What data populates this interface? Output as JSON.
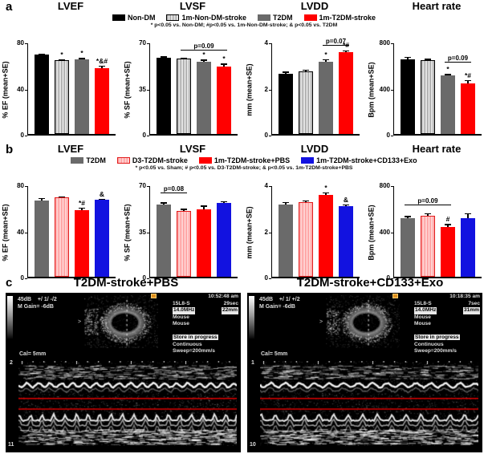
{
  "figure": {
    "panels": {
      "a": {
        "label": "a",
        "legend": [
          {
            "label": "Non-DM",
            "style": "black"
          },
          {
            "label": "1m-Non-DM-stroke",
            "style": "grayStriped"
          },
          {
            "label": "T2DM",
            "style": "gray"
          },
          {
            "label": "1m-T2DM-stroke",
            "style": "red"
          }
        ],
        "bar_styles": [
          "black",
          "grayStriped",
          "gray",
          "red"
        ],
        "note": "* p<0.05 vs. Non-DM;  #p<0.05 vs. 1m-Non-DM-stroke;  & p<0.05 vs. T2DM"
      },
      "b": {
        "label": "b",
        "legend": [
          {
            "label": "T2DM",
            "style": "gray"
          },
          {
            "label": "D3-T2DM-stroke",
            "style": "pinkStriped"
          },
          {
            "label": "1m-T2DM-stroke+PBS",
            "style": "red"
          },
          {
            "label": "1m-T2DM-stroke+CD133+Exo",
            "style": "blue"
          }
        ],
        "bar_styles": [
          "gray",
          "pinkStriped",
          "red",
          "blue"
        ],
        "note": "* p<0.05 vs. Sham; # p<0.05 vs. D3-T2DM-stroke; & p<0.05 vs. 1m-T2DM-stroke+PBS"
      },
      "c": {
        "label": "c"
      }
    },
    "colors": {
      "black": "#000000",
      "gray": "#6a6a6a",
      "red": "#ff0000",
      "blue": "#1212e0",
      "pink": "#ffb4b4",
      "mmode_marker_line": "#dd0000"
    }
  },
  "chart_data": [
    {
      "panel": "a",
      "type": "bar",
      "title": "LVEF",
      "ylabel": "% EF (mean+SE)",
      "ylim": [
        0,
        80
      ],
      "yticks": [
        0,
        40,
        80
      ],
      "categories": [
        "Non-DM",
        "1m-Non-DM-stroke",
        "T2DM",
        "1m-T2DM-stroke"
      ],
      "values": [
        70,
        65,
        66,
        58
      ],
      "errors": [
        1,
        1,
        1,
        2.5
      ],
      "sig": [
        "",
        "*",
        "*",
        "*&#"
      ]
    },
    {
      "panel": "a",
      "type": "bar",
      "title": "LVSF",
      "ylabel": "% SF (mean+SE)",
      "ylim": [
        0,
        70
      ],
      "yticks": [
        0,
        35,
        70
      ],
      "categories": [
        "Non-DM",
        "1m-Non-DM-stroke",
        "T2DM",
        "1m-T2DM-stroke"
      ],
      "values": [
        59,
        58,
        56,
        52
      ],
      "errors": [
        1,
        1,
        1.5,
        2.5
      ],
      "sig": [
        "",
        "",
        "*",
        "*"
      ],
      "bracket": {
        "from": 1,
        "to": 3,
        "label": "p=0.09",
        "y": 65
      }
    },
    {
      "panel": "a",
      "type": "bar",
      "title": "LVDD",
      "ylabel": "mm (mean+SE)",
      "ylim": [
        0,
        4
      ],
      "yticks": [
        0,
        2,
        4
      ],
      "categories": [
        "Non-DM",
        "1m-Non-DM-stroke",
        "T2DM",
        "1m-T2DM-stroke"
      ],
      "values": [
        2.65,
        2.75,
        3.2,
        3.6
      ],
      "errors": [
        0.1,
        0.1,
        0.1,
        0.1
      ],
      "sig": [
        "",
        "",
        "*",
        "*#"
      ],
      "bracket": {
        "from": 2,
        "to": 3,
        "label": "p=0.07",
        "y": 3.93
      }
    },
    {
      "panel": "a",
      "type": "bar",
      "title": "Heart rate",
      "ylabel": "Bpm (mean+SE)",
      "ylim": [
        0,
        800
      ],
      "yticks": [
        0,
        400,
        800
      ],
      "categories": [
        "Non-DM",
        "1m-Non-DM-stroke",
        "T2DM",
        "1m-T2DM-stroke"
      ],
      "values": [
        660,
        650,
        515,
        445
      ],
      "errors": [
        20,
        15,
        15,
        30
      ],
      "sig": [
        "",
        "",
        "*",
        "*#"
      ],
      "bracket": {
        "from": 2,
        "to": 3,
        "label": "p=0.09",
        "y": 640
      }
    },
    {
      "panel": "b",
      "type": "bar",
      "title": "LVEF",
      "ylabel": "% EF (mean+SE)",
      "ylim": [
        0,
        80
      ],
      "yticks": [
        0,
        40,
        80
      ],
      "categories": [
        "T2DM",
        "D3-T2DM-stroke",
        "1m-T2DM-stroke+PBS",
        "1m-T2DM-stroke+CD133+Exo"
      ],
      "values": [
        67,
        70,
        59,
        68
      ],
      "errors": [
        2.5,
        1,
        2,
        1
      ],
      "sig": [
        "",
        "",
        "*#",
        "&"
      ]
    },
    {
      "panel": "b",
      "type": "bar",
      "title": "LVSF",
      "ylabel": "% SF (mean+SE)",
      "ylim": [
        0,
        70
      ],
      "yticks": [
        0,
        35,
        70
      ],
      "categories": [
        "T2DM",
        "D3-T2DM-stroke",
        "1m-T2DM-stroke+PBS",
        "1m-T2DM-stroke+CD133+Exo"
      ],
      "values": [
        56,
        51,
        52,
        57
      ],
      "errors": [
        1.5,
        1.5,
        3,
        1.5
      ],
      "sig": [
        "",
        "",
        "",
        ""
      ],
      "bracket": {
        "from": 0,
        "to": 1,
        "label": "p=0.08",
        "y": 65
      }
    },
    {
      "panel": "b",
      "type": "bar",
      "title": "LVDD",
      "ylabel": "mm (mean+SE)",
      "ylim": [
        0,
        4
      ],
      "yticks": [
        0,
        2,
        4
      ],
      "categories": [
        "T2DM",
        "D3-T2DM-stroke",
        "1m-T2DM-stroke+PBS",
        "1m-T2DM-stroke+CD133+Exo"
      ],
      "values": [
        3.2,
        3.3,
        3.6,
        3.1
      ],
      "errors": [
        0.1,
        0.08,
        0.12,
        0.1
      ],
      "sig": [
        "",
        "",
        "*",
        "&"
      ]
    },
    {
      "panel": "b",
      "type": "bar",
      "title": "Heart rate",
      "ylabel": "Bpm (mean+SE)",
      "ylim": [
        0,
        800
      ],
      "yticks": [
        0,
        400,
        800
      ],
      "categories": [
        "T2DM",
        "D3-T2DM-stroke",
        "1m-T2DM-stroke+PBS",
        "1m-T2DM-stroke+CD133+Exo"
      ],
      "values": [
        515,
        540,
        440,
        515
      ],
      "errors": [
        20,
        20,
        25,
        45
      ],
      "sig": [
        "",
        "",
        "#",
        ""
      ],
      "bracket": {
        "from": 0,
        "to": 2,
        "label": "p=0.09",
        "y": 640
      }
    }
  ],
  "ultrasound": {
    "left": {
      "title": "T2DM-stroke+PBS",
      "power": "45dB",
      "preset": "+/ 1/ -/2",
      "gain": "M Gain= -6dB",
      "time": "10:52:48 am",
      "probe": "15L8-S",
      "elapsed": "29sec",
      "freq": "14.0MHz",
      "depth": "22mm",
      "species_line1": "Mouse",
      "species_line2": "Mouse",
      "status": "Store in progress",
      "mode": "Continuous",
      "sweep": "Sweep=200mm/s",
      "cal": "Cal=  5mm",
      "scale_top": "2",
      "scale_bottom": "11"
    },
    "right": {
      "title": "T2DM-stroke+CD133+Exo",
      "power": "45dB",
      "preset": "+/ 1/ +/2",
      "gain": "M Gain= -6dB",
      "time": "10:18:35 am",
      "probe": "15L8-S",
      "elapsed": "7sec",
      "freq": "14.0MHz",
      "depth": "31mm",
      "species_line1": "Mouse",
      "species_line2": "Mouse",
      "status": "Store in progress",
      "mode": "Continuous",
      "sweep": "Sweep=200mm/s",
      "cal": "Cal=  5mm",
      "scale_top": "1",
      "scale_bottom": "10"
    }
  }
}
